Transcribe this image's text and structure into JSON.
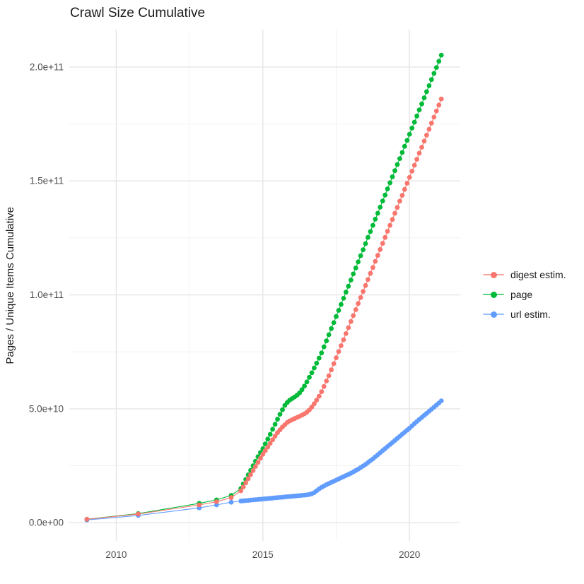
{
  "chart_data": {
    "type": "line",
    "title": "Crawl Size Cumulative",
    "xlabel": "",
    "y_label": "Pages / Unique Items Cumulative",
    "legend_position": "right",
    "grid": "on",
    "value_unit": "1e10",
    "style": {
      "grid_major": "#e6e6e6",
      "grid_minor": "#f2f2f2",
      "tick_label_color": "#4d4d4d",
      "title_color": "#1a1a1a",
      "background": "#ffffff"
    },
    "x_axis": {
      "range": [
        2008.4,
        2021.73
      ],
      "ticks": [
        {
          "v": 2010,
          "label": "2010"
        },
        {
          "v": 2015,
          "label": "2015"
        },
        {
          "v": 2020,
          "label": "2020"
        }
      ],
      "minor": [
        2012.5,
        2017.5
      ]
    },
    "y_axis": {
      "range_e10": [
        -0.8,
        21.64
      ],
      "ticks": [
        {
          "v": 0,
          "label": "0.0e+00"
        },
        {
          "v": 5,
          "label": "5.0e+10"
        },
        {
          "v": 10,
          "label": "1.0e+11"
        },
        {
          "v": 15,
          "label": "1.5e+11"
        },
        {
          "v": 20,
          "label": "2.0e+11"
        }
      ],
      "minor_e10": [
        2.5,
        7.5,
        12.5,
        17.5
      ]
    },
    "x": [
      2009.0,
      2010.75,
      2012.83,
      2013.42,
      2013.92,
      2014.25,
      2014.333,
      2014.417,
      2014.5,
      2014.583,
      2014.667,
      2014.75,
      2014.833,
      2014.917,
      2015.0,
      2015.083,
      2015.167,
      2015.25,
      2015.333,
      2015.417,
      2015.5,
      2015.583,
      2015.667,
      2015.75,
      2015.833,
      2015.917,
      2016.0,
      2016.083,
      2016.167,
      2016.25,
      2016.333,
      2016.417,
      2016.5,
      2016.583,
      2016.667,
      2016.75,
      2016.833,
      2016.917,
      2017.0,
      2017.083,
      2017.167,
      2017.25,
      2017.333,
      2017.417,
      2017.5,
      2017.583,
      2017.667,
      2017.75,
      2017.833,
      2017.917,
      2018.0,
      2018.083,
      2018.167,
      2018.25,
      2018.333,
      2018.417,
      2018.5,
      2018.583,
      2018.667,
      2018.75,
      2018.833,
      2018.917,
      2019.0,
      2019.083,
      2019.167,
      2019.25,
      2019.333,
      2019.417,
      2019.5,
      2019.583,
      2019.667,
      2019.75,
      2019.833,
      2019.917,
      2020.0,
      2020.083,
      2020.167,
      2020.25,
      2020.333,
      2020.417,
      2020.5,
      2020.583,
      2020.667,
      2020.75,
      2020.833,
      2020.917,
      2021.0,
      2021.083
    ],
    "series": [
      {
        "name": "digest estim.",
        "color": "#F8766D",
        "values_e10": [
          0.15,
          0.38,
          0.78,
          0.92,
          1.1,
          1.4,
          1.57,
          1.75,
          1.93,
          2.11,
          2.29,
          2.47,
          2.65,
          2.83,
          3.0,
          3.16,
          3.32,
          3.48,
          3.64,
          3.8,
          3.95,
          4.08,
          4.2,
          4.3,
          4.4,
          4.47,
          4.52,
          4.57,
          4.62,
          4.67,
          4.72,
          4.78,
          4.85,
          4.95,
          5.08,
          5.22,
          5.38,
          5.55,
          5.75,
          5.98,
          6.22,
          6.45,
          6.71,
          6.98,
          7.24,
          7.51,
          7.77,
          8.03,
          8.3,
          8.56,
          8.83,
          9.09,
          9.35,
          9.62,
          9.88,
          10.15,
          10.41,
          10.67,
          10.94,
          11.2,
          11.47,
          11.73,
          11.99,
          12.26,
          12.52,
          12.79,
          13.05,
          13.31,
          13.58,
          13.84,
          14.11,
          14.37,
          14.63,
          14.9,
          15.16,
          15.43,
          15.69,
          15.95,
          16.22,
          16.48,
          16.75,
          17.01,
          17.27,
          17.54,
          17.8,
          18.07,
          18.33,
          18.6
        ]
      },
      {
        "name": "page",
        "color": "#00BA38",
        "values_e10": [
          0.15,
          0.4,
          0.85,
          1.0,
          1.2,
          1.5,
          1.7,
          1.9,
          2.1,
          2.3,
          2.5,
          2.7,
          2.9,
          3.08,
          3.25,
          3.46,
          3.67,
          3.88,
          4.1,
          4.32,
          4.54,
          4.76,
          4.96,
          5.15,
          5.28,
          5.38,
          5.45,
          5.52,
          5.6,
          5.7,
          5.84,
          6.0,
          6.18,
          6.38,
          6.58,
          6.79,
          7.0,
          7.22,
          7.45,
          7.72,
          7.98,
          8.25,
          8.52,
          8.78,
          9.05,
          9.32,
          9.58,
          9.85,
          10.12,
          10.38,
          10.65,
          10.92,
          11.18,
          11.45,
          11.72,
          11.98,
          12.25,
          12.52,
          12.78,
          13.05,
          13.32,
          13.58,
          13.85,
          14.12,
          14.38,
          14.65,
          14.92,
          15.18,
          15.45,
          15.72,
          15.98,
          16.25,
          16.52,
          16.78,
          17.05,
          17.32,
          17.58,
          17.85,
          18.12,
          18.38,
          18.65,
          18.92,
          19.18,
          19.45,
          19.72,
          19.98,
          20.25,
          20.52
        ]
      },
      {
        "name": "url estim.",
        "color": "#619CFF",
        "values_e10": [
          0.12,
          0.32,
          0.65,
          0.78,
          0.9,
          0.95,
          0.96,
          0.97,
          0.98,
          0.99,
          1.0,
          1.01,
          1.02,
          1.03,
          1.04,
          1.05,
          1.06,
          1.07,
          1.08,
          1.09,
          1.1,
          1.11,
          1.12,
          1.13,
          1.14,
          1.15,
          1.16,
          1.17,
          1.18,
          1.19,
          1.2,
          1.21,
          1.22,
          1.24,
          1.27,
          1.32,
          1.4,
          1.48,
          1.55,
          1.61,
          1.67,
          1.72,
          1.77,
          1.82,
          1.87,
          1.92,
          1.97,
          2.02,
          2.07,
          2.12,
          2.17,
          2.23,
          2.29,
          2.35,
          2.42,
          2.49,
          2.56,
          2.64,
          2.72,
          2.8,
          2.89,
          2.98,
          3.07,
          3.16,
          3.25,
          3.34,
          3.43,
          3.52,
          3.61,
          3.7,
          3.79,
          3.88,
          3.97,
          4.06,
          4.15,
          4.25,
          4.35,
          4.44,
          4.53,
          4.62,
          4.71,
          4.8,
          4.89,
          4.98,
          5.07,
          5.16,
          5.25,
          5.35
        ]
      }
    ]
  }
}
